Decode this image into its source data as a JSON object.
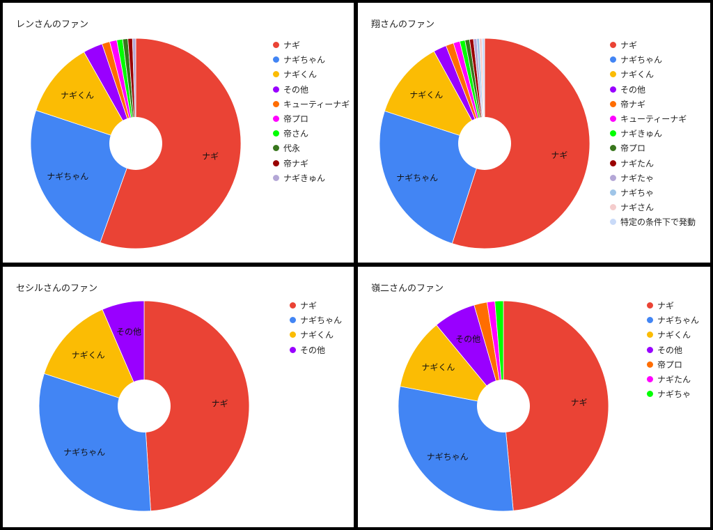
{
  "chart_data": [
    {
      "type": "pie",
      "title": "レンさんのファン",
      "series": [
        {
          "name": "ナギ",
          "value": 55.5,
          "color": "#ea4335",
          "label": "ナギ"
        },
        {
          "name": "ナギちゃん",
          "value": 24.6,
          "color": "#4285f4",
          "label": "ナギちゃん"
        },
        {
          "name": "ナギくん",
          "value": 11.7,
          "color": "#fbbc04",
          "label": "ナギくん"
        },
        {
          "name": "その他",
          "value": 3.0,
          "color": "#9900ff",
          "label": ""
        },
        {
          "name": "キューティーナギ",
          "value": 1.2,
          "color": "#ff6d01",
          "label": ""
        },
        {
          "name": "帝プロ",
          "value": 1.1,
          "color": "#ff00ff",
          "label": ""
        },
        {
          "name": "帝さん",
          "value": 0.9,
          "color": "#00ff00",
          "label": ""
        },
        {
          "name": "代永",
          "value": 0.8,
          "color": "#38761d",
          "label": ""
        },
        {
          "name": "帝ナギ",
          "value": 0.7,
          "color": "#990000",
          "label": ""
        },
        {
          "name": "ナギきゅん",
          "value": 0.5,
          "color": "#b4a7d6",
          "label": ""
        }
      ]
    },
    {
      "type": "pie",
      "title": "翔さんのファン",
      "series": [
        {
          "name": "ナギ",
          "value": 55.0,
          "color": "#ea4335",
          "label": "ナギ"
        },
        {
          "name": "ナギちゃん",
          "value": 25.0,
          "color": "#4285f4",
          "label": "ナギちゃん"
        },
        {
          "name": "ナギくん",
          "value": 12.0,
          "color": "#fbbc04",
          "label": "ナギくん"
        },
        {
          "name": "その他",
          "value": 2.0,
          "color": "#9900ff",
          "label": ""
        },
        {
          "name": "帝ナギ",
          "value": 1.2,
          "color": "#ff6d01",
          "label": ""
        },
        {
          "name": "キューティーナギ",
          "value": 1.0,
          "color": "#ff00ff",
          "label": ""
        },
        {
          "name": "ナギきゅん",
          "value": 0.8,
          "color": "#00ff00",
          "label": ""
        },
        {
          "name": "帝プロ",
          "value": 0.7,
          "color": "#38761d",
          "label": ""
        },
        {
          "name": "ナギたん",
          "value": 0.6,
          "color": "#990000",
          "label": ""
        },
        {
          "name": "ナギたゃ",
          "value": 0.5,
          "color": "#b4a7d6",
          "label": ""
        },
        {
          "name": "ナギちゃ",
          "value": 0.4,
          "color": "#9fc5e8",
          "label": ""
        },
        {
          "name": "ナギさん",
          "value": 0.4,
          "color": "#f4cccc",
          "label": ""
        },
        {
          "name": "特定の条件下で発動",
          "value": 0.4,
          "color": "#c9daf8",
          "label": ""
        }
      ]
    },
    {
      "type": "pie",
      "title": "セシルさんのファン",
      "series": [
        {
          "name": "ナギ",
          "value": 49.0,
          "color": "#ea4335",
          "label": "ナギ"
        },
        {
          "name": "ナギちゃん",
          "value": 31.0,
          "color": "#4285f4",
          "label": "ナギちゃん"
        },
        {
          "name": "ナギくん",
          "value": 13.5,
          "color": "#fbbc04",
          "label": "ナギくん"
        },
        {
          "name": "その他",
          "value": 6.5,
          "color": "#9900ff",
          "label": "その他"
        }
      ]
    },
    {
      "type": "pie",
      "title": "嶺二さんのファン",
      "series": [
        {
          "name": "ナギ",
          "value": 48.5,
          "color": "#ea4335",
          "label": "ナギ"
        },
        {
          "name": "ナギちゃん",
          "value": 29.5,
          "color": "#4285f4",
          "label": "ナギちゃん"
        },
        {
          "name": "ナギくん",
          "value": 11.0,
          "color": "#fbbc04",
          "label": "ナギくん"
        },
        {
          "name": "その他",
          "value": 6.5,
          "color": "#9900ff",
          "label": "その他"
        },
        {
          "name": "帝プロ",
          "value": 2.0,
          "color": "#ff6d01",
          "label": ""
        },
        {
          "name": "ナギたん",
          "value": 1.2,
          "color": "#ff00ff",
          "label": ""
        },
        {
          "name": "ナギちゃ",
          "value": 1.3,
          "color": "#00ff00",
          "label": ""
        }
      ]
    }
  ]
}
